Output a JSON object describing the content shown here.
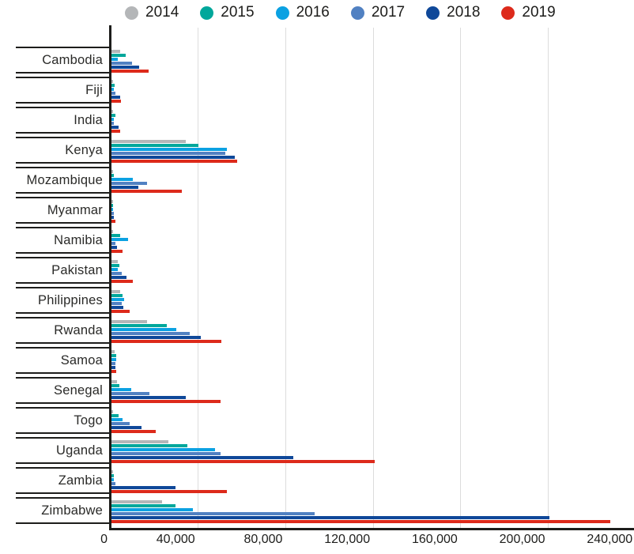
{
  "chart_data": {
    "type": "bar",
    "orientation": "horizontal",
    "title": "",
    "xlabel": "",
    "ylabel": "",
    "grid": true,
    "legend_position": "top",
    "xlim": [
      0,
      240000
    ],
    "x_tick_values": [
      0,
      40000,
      80000,
      120000,
      160000,
      200000,
      240000
    ],
    "x_tick_labels": [
      "0",
      "40,000",
      "80,000",
      "120,000",
      "160,000",
      "200,000",
      "240,000"
    ],
    "categories": [
      "Cambodia",
      "Fiji",
      "India",
      "Kenya",
      "Mozambique",
      "Myanmar",
      "Namibia",
      "Pakistan",
      "Philippines",
      "Rwanda",
      "Samoa",
      "Senegal",
      "Togo",
      "Uganda",
      "Zambia",
      "Zimbabwe"
    ],
    "series": [
      {
        "name": "2014",
        "color": "#b4b6b8",
        "values": [
          3900,
          300,
          300,
          34000,
          700,
          200,
          300,
          3000,
          4000,
          16300,
          1400,
          2400,
          400,
          26000,
          200,
          23000
        ]
      },
      {
        "name": "2015",
        "color": "#00a79b",
        "values": [
          6500,
          1400,
          1700,
          39600,
          1200,
          400,
          3900,
          3600,
          5200,
          25400,
          2000,
          3600,
          3300,
          34700,
          1200,
          29300
        ]
      },
      {
        "name": "2016",
        "color": "#0ba1e2",
        "values": [
          2900,
          1100,
          1100,
          52900,
          9800,
          700,
          7700,
          2800,
          5700,
          29800,
          2300,
          9100,
          5200,
          47400,
          1200,
          37300
        ]
      },
      {
        "name": "2017",
        "color": "#5181c2",
        "values": [
          9500,
          1700,
          1100,
          52000,
          16400,
          1100,
          1700,
          4800,
          4800,
          35600,
          1700,
          17500,
          8400,
          50000,
          1800,
          92800
        ]
      },
      {
        "name": "2018",
        "color": "#0f4899",
        "values": [
          12800,
          3900,
          3100,
          56300,
          12300,
          1200,
          2700,
          7000,
          5400,
          41000,
          1700,
          33800,
          13900,
          83200,
          29300,
          200200
        ]
      },
      {
        "name": "2019",
        "color": "#dd2a1b",
        "values": [
          17000,
          4300,
          3900,
          57300,
          32100,
          1700,
          5000,
          9700,
          8400,
          50400,
          2000,
          49900,
          20200,
          120300,
          52700,
          228000
        ]
      }
    ]
  },
  "style_colors": {
    "axis": "#1d1d1b",
    "gridline": "#dcdcdc",
    "label_text": "#2a2a28",
    "tick_text": "#1d1d1b"
  }
}
